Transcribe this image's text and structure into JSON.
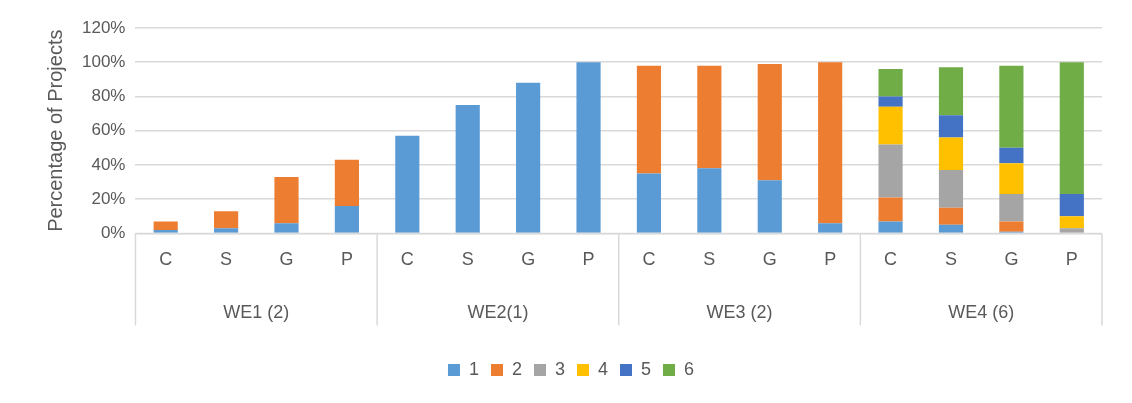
{
  "chart_data": {
    "type": "bar",
    "stacked": true,
    "ylabel": "Percentage of Projects",
    "categories": [
      "C",
      "S",
      "G",
      "P",
      "C",
      "S",
      "G",
      "P",
      "C",
      "S",
      "G",
      "P",
      "C",
      "S",
      "G",
      "P"
    ],
    "annotations": [
      "WE1 (2)",
      "WE2(1)",
      "WE3 (2)",
      "WE4 (6)"
    ],
    "series": [
      {
        "name": "1",
        "color": "#5b9bd5",
        "values": [
          2,
          3,
          6,
          16,
          57,
          75,
          88,
          100,
          35,
          38,
          31,
          6,
          7,
          5,
          1,
          0
        ]
      },
      {
        "name": "2",
        "color": "#ed7d31",
        "values": [
          5,
          10,
          27,
          27,
          0,
          0,
          0,
          0,
          63,
          60,
          68,
          94,
          14,
          10,
          6,
          0
        ]
      },
      {
        "name": "3",
        "color": "#a5a5a5",
        "values": [
          0,
          0,
          0,
          0,
          0,
          0,
          0,
          0,
          0,
          0,
          0,
          0,
          31,
          22,
          16,
          3
        ]
      },
      {
        "name": "4",
        "color": "#ffc000",
        "values": [
          0,
          0,
          0,
          0,
          0,
          0,
          0,
          0,
          0,
          0,
          0,
          0,
          22,
          19,
          18,
          7
        ]
      },
      {
        "name": "5",
        "color": "#4472c4",
        "values": [
          0,
          0,
          0,
          0,
          0,
          0,
          0,
          0,
          0,
          0,
          0,
          0,
          6,
          13,
          9,
          13
        ]
      },
      {
        "name": "6",
        "color": "#70ad47",
        "values": [
          0,
          0,
          0,
          0,
          0,
          0,
          0,
          0,
          0,
          0,
          0,
          0,
          16,
          28,
          48,
          77
        ]
      }
    ],
    "ylim": [
      0,
      120
    ],
    "yticks": [
      {
        "value": 0,
        "label": "0%"
      },
      {
        "value": 20,
        "label": "20%"
      },
      {
        "value": 40,
        "label": "40%"
      },
      {
        "value": 60,
        "label": "60%"
      },
      {
        "value": 80,
        "label": "80%"
      },
      {
        "value": 100,
        "label": "100%"
      },
      {
        "value": 120,
        "label": "120%"
      }
    ],
    "grid": "y",
    "legend": "bottom"
  }
}
